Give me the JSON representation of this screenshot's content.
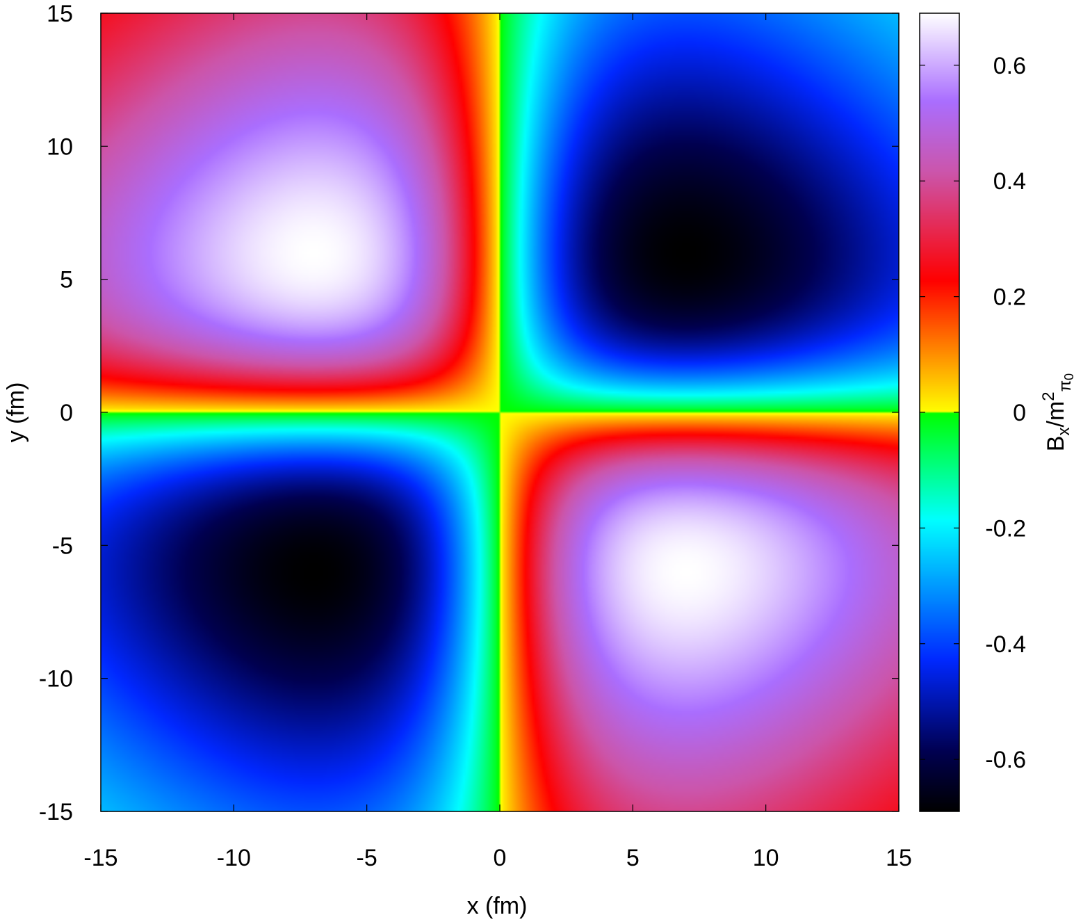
{
  "chart_data": {
    "type": "heatmap",
    "xlabel": "x (fm)",
    "ylabel": "y (fm)",
    "xlim": [
      -15,
      15
    ],
    "ylim": [
      -15,
      15
    ],
    "x_ticks": [
      "-15",
      "-10",
      "-5",
      "0",
      "5",
      "10",
      "15"
    ],
    "y_ticks": [
      "-15",
      "-10",
      "-5",
      "0",
      "5",
      "10",
      "15"
    ],
    "colorbar": {
      "label_main": "B",
      "label_sub": "x",
      "label_mid": "/m",
      "label_sup": "2",
      "label_sub2": "π",
      "label_sub3": "0",
      "range": [
        -0.69,
        0.69
      ],
      "ticks": [
        "0.6",
        "0.4",
        "0.2",
        "0",
        "-0.2",
        "-0.4",
        "-0.6"
      ],
      "tick_values": [
        0.6,
        0.4,
        0.2,
        0,
        -0.2,
        -0.4,
        -0.6
      ]
    },
    "field": {
      "description_of_values": "quadrupole pattern",
      "extrema": [
        {
          "x": -7,
          "y": 6,
          "value": 0.69
        },
        {
          "x": 7,
          "y": 6,
          "value": -0.69
        },
        {
          "x": -7,
          "y": -6,
          "value": -0.69
        },
        {
          "x": 7,
          "y": -6,
          "value": 0.69
        }
      ],
      "zero_lines": {
        "x": 0,
        "y": 0
      }
    },
    "grid": false,
    "legend": "none"
  }
}
